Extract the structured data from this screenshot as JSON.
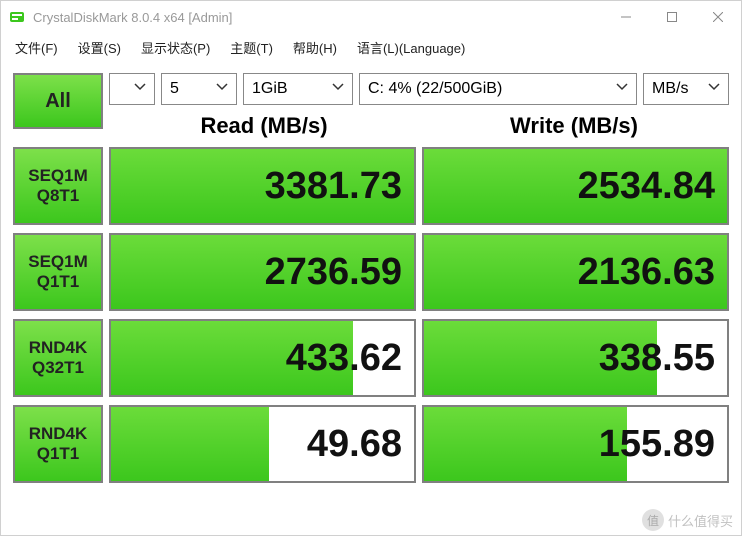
{
  "window": {
    "title": "CrystalDiskMark 8.0.4 x64 [Admin]"
  },
  "menu": {
    "file": "文件(F)",
    "settings": "设置(S)",
    "display": "显示状态(P)",
    "theme": "主题(T)",
    "help": "帮助(H)",
    "language": "语言(L)(Language)"
  },
  "controls": {
    "all_label": "All",
    "runs": "5",
    "size": "1GiB",
    "drive": "C: 4% (22/500GiB)",
    "unit": "MB/s"
  },
  "headers": {
    "read": "Read (MB/s)",
    "write": "Write (MB/s)"
  },
  "rows": [
    {
      "label1": "SEQ1M",
      "label2": "Q8T1",
      "read": "3381.73",
      "read_fill": 100,
      "write": "2534.84",
      "write_fill": 100
    },
    {
      "label1": "SEQ1M",
      "label2": "Q1T1",
      "read": "2736.59",
      "read_fill": 100,
      "write": "2136.63",
      "write_fill": 100
    },
    {
      "label1": "RND4K",
      "label2": "Q32T1",
      "read": "433.62",
      "read_fill": 80,
      "write": "338.55",
      "write_fill": 77
    },
    {
      "label1": "RND4K",
      "label2": "Q1T1",
      "read": "49.68",
      "read_fill": 52,
      "write": "155.89",
      "write_fill": 67
    }
  ],
  "colors": {
    "green_top": "#7de04a",
    "green_bottom": "#3cc71d",
    "cell_border": "#808080",
    "title_text": "#999999"
  },
  "watermark": {
    "text": "什么值得买"
  }
}
